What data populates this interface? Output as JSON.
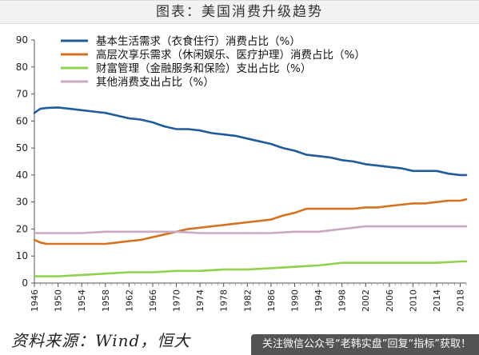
{
  "header": {
    "title": "图表：美国消费升级趋势"
  },
  "footer": {
    "source": "资料来源：Wind，恒大",
    "watermark": "关注微信公众号“老韩实盘”回复“指标”获取！"
  },
  "chart_data": {
    "type": "line",
    "title": "图表：美国消费升级趋势",
    "xlabel": "",
    "ylabel": "",
    "xlim": [
      1946,
      2019
    ],
    "ylim": [
      0,
      90
    ],
    "yticks": [
      0,
      10,
      20,
      30,
      40,
      50,
      60,
      70,
      80,
      90
    ],
    "xticks": [
      1946,
      1950,
      1954,
      1958,
      1962,
      1966,
      1970,
      1974,
      1978,
      1982,
      1986,
      1990,
      1994,
      1998,
      2002,
      2006,
      2010,
      2014,
      2018
    ],
    "grid": false,
    "legend_position": "top-left",
    "series": [
      {
        "name": "基本生活需求（衣食住行）消费占比（%）",
        "color": "#1f5c99",
        "x": [
          1946,
          1947,
          1948,
          1950,
          1952,
          1954,
          1956,
          1958,
          1960,
          1962,
          1964,
          1966,
          1968,
          1970,
          1972,
          1974,
          1976,
          1978,
          1980,
          1982,
          1984,
          1986,
          1988,
          1990,
          1992,
          1994,
          1996,
          1998,
          2000,
          2002,
          2004,
          2006,
          2008,
          2010,
          2012,
          2014,
          2016,
          2018,
          2019
        ],
        "values": [
          63,
          64.5,
          64.8,
          65,
          64.5,
          64,
          63.5,
          63,
          62,
          61,
          60.5,
          59.5,
          58,
          57,
          57,
          56.5,
          55.5,
          55,
          54.5,
          53.5,
          52.5,
          51.5,
          50,
          49,
          47.5,
          47,
          46.5,
          45.5,
          45,
          44,
          43.5,
          43,
          42.5,
          41.5,
          41.5,
          41.5,
          40.5,
          40,
          40
        ]
      },
      {
        "name": "高层次享乐需求（休闲娱乐、医疗护理）消费占比（%）",
        "color": "#d4731f",
        "x": [
          1946,
          1947,
          1948,
          1950,
          1952,
          1954,
          1956,
          1958,
          1960,
          1962,
          1964,
          1966,
          1968,
          1970,
          1972,
          1974,
          1976,
          1978,
          1980,
          1982,
          1984,
          1986,
          1988,
          1990,
          1992,
          1994,
          1996,
          1998,
          2000,
          2002,
          2004,
          2006,
          2008,
          2010,
          2012,
          2014,
          2016,
          2018,
          2019
        ],
        "values": [
          16,
          15,
          14.5,
          14.5,
          14.5,
          14.5,
          14.5,
          14.5,
          15,
          15.5,
          16,
          17,
          18,
          19,
          20,
          20.5,
          21,
          21.5,
          22,
          22.5,
          23,
          23.5,
          25,
          26,
          27.5,
          27.5,
          27.5,
          27.5,
          27.5,
          28,
          28,
          28.5,
          29,
          29.5,
          29.5,
          30,
          30.5,
          30.5,
          31
        ]
      },
      {
        "name": "财富管理（金融服务和保险）支出占比（%）",
        "color": "#92d050",
        "x": [
          1946,
          1950,
          1954,
          1958,
          1962,
          1966,
          1970,
          1974,
          1978,
          1982,
          1986,
          1990,
          1994,
          1998,
          2002,
          2006,
          2010,
          2014,
          2018,
          2019
        ],
        "values": [
          2.5,
          2.5,
          3,
          3.5,
          4,
          4,
          4.5,
          4.5,
          5,
          5,
          5.5,
          6,
          6.5,
          7.5,
          7.5,
          7.5,
          7.5,
          7.5,
          8,
          8
        ]
      },
      {
        "name": "其他消费支出占比（%）",
        "color": "#c8a8c3",
        "x": [
          1946,
          1950,
          1954,
          1958,
          1962,
          1966,
          1970,
          1974,
          1978,
          1982,
          1986,
          1990,
          1994,
          1998,
          2002,
          2006,
          2010,
          2014,
          2018,
          2019
        ],
        "values": [
          18.5,
          18.5,
          18.5,
          19,
          19,
          19,
          19,
          18.5,
          18.5,
          18.5,
          18.5,
          19,
          19,
          20,
          21,
          21,
          21,
          21,
          21,
          21
        ]
      }
    ]
  }
}
